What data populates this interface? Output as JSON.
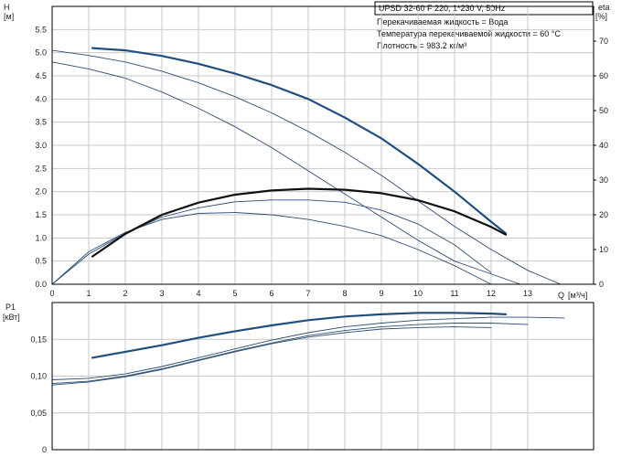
{
  "header": {
    "title": "UPSD 32-60 F 220, 1*230 V, 50Hz",
    "info": [
      "Перекачиваемая жидкость = Вода",
      "Температура перекачиваемой жидкости = 60 °C",
      "Плотность = 983.2 кг/м³"
    ]
  },
  "colors": {
    "strong": "#1f4f7f",
    "thin": "#2d4f76",
    "eta": "#111111",
    "grid": "#c8c8c8"
  },
  "chart_data": [
    {
      "type": "line",
      "name": "H-Q",
      "title": "",
      "ylabel": "H",
      "yunit": "[м]",
      "y2label": "eta",
      "y2unit": "[%]",
      "xlabel": "Q",
      "xunit": "[м³/ч]",
      "x_ticks": [
        "0",
        "1",
        "2",
        "3",
        "4",
        "5",
        "6",
        "7",
        "8",
        "9",
        "10",
        "11",
        "12",
        "13"
      ],
      "y_ticks": [
        "0.0",
        "0.5",
        "1.0",
        "1.5",
        "2.0",
        "2.5",
        "3.0",
        "3.5",
        "4.0",
        "4.5",
        "5.0",
        "5.5"
      ],
      "y2_ticks": [
        "0",
        "10",
        "20",
        "30",
        "40",
        "50",
        "60",
        "70"
      ],
      "xlim": [
        0,
        14.8
      ],
      "ylim": [
        0,
        6.0
      ],
      "y2lim": [
        0,
        80
      ],
      "grid": true,
      "series": [
        {
          "axis": "left",
          "weight": "bold",
          "x": [
            1.1,
            2,
            3,
            4,
            5,
            6,
            7,
            8,
            9,
            10,
            11,
            12,
            12.4
          ],
          "y": [
            5.1,
            5.05,
            4.93,
            4.76,
            4.55,
            4.3,
            4.0,
            3.6,
            3.15,
            2.6,
            2.0,
            1.35,
            1.1
          ]
        },
        {
          "axis": "left",
          "weight": "thin",
          "x": [
            0,
            1,
            2,
            3,
            4,
            5,
            6,
            7,
            8,
            9,
            10,
            11,
            12,
            13,
            13.9
          ],
          "y": [
            5.05,
            4.94,
            4.8,
            4.6,
            4.35,
            4.05,
            3.7,
            3.3,
            2.85,
            2.35,
            1.8,
            1.25,
            0.75,
            0.3,
            0.0
          ]
        },
        {
          "axis": "left",
          "weight": "thin",
          "x": [
            0,
            1,
            2,
            3,
            4,
            5,
            6,
            7,
            8,
            9,
            10,
            11,
            12.8
          ],
          "y": [
            4.8,
            4.65,
            4.45,
            4.15,
            3.8,
            3.4,
            2.95,
            2.45,
            1.95,
            1.45,
            0.95,
            0.5,
            0.0
          ]
        },
        {
          "axis": "left",
          "weight": "thin",
          "x": [
            0,
            1,
            2,
            3,
            4,
            5,
            6,
            7,
            8,
            9,
            10,
            11,
            12
          ],
          "y": [
            0.0,
            0.65,
            1.1,
            1.45,
            1.65,
            1.78,
            1.82,
            1.82,
            1.77,
            1.6,
            1.3,
            0.85,
            0.25
          ]
        },
        {
          "axis": "left",
          "weight": "thin",
          "x": [
            0,
            1,
            2,
            3,
            4,
            5,
            6,
            7,
            8,
            9,
            10,
            11,
            12
          ],
          "y": [
            0.0,
            0.7,
            1.12,
            1.4,
            1.53,
            1.55,
            1.5,
            1.4,
            1.25,
            1.05,
            0.75,
            0.4,
            0.0
          ]
        },
        {
          "axis": "right",
          "weight": "eta",
          "x": [
            1.1,
            2,
            3,
            4,
            5,
            6,
            7,
            8,
            9,
            10,
            11,
            12,
            12.4
          ],
          "y": [
            8,
            14.5,
            20,
            23.5,
            25.8,
            27,
            27.5,
            27.2,
            26.2,
            24.2,
            21,
            16.5,
            14.3
          ]
        }
      ]
    },
    {
      "type": "line",
      "name": "P1-Q",
      "title": "",
      "ylabel": "P1",
      "yunit": "[кВт]",
      "y_ticks": [
        "0",
        "0,05",
        "0,10",
        "0,15"
      ],
      "xlim": [
        0,
        14.8
      ],
      "ylim": [
        0,
        0.2
      ],
      "grid": true,
      "series": [
        {
          "weight": "bold",
          "x": [
            1.1,
            2,
            3,
            4,
            5,
            6,
            7,
            8,
            9,
            10,
            11,
            12,
            12.4
          ],
          "y": [
            0.125,
            0.133,
            0.142,
            0.152,
            0.161,
            0.169,
            0.176,
            0.181,
            0.184,
            0.186,
            0.186,
            0.185,
            0.184
          ]
        },
        {
          "weight": "thin",
          "x": [
            0,
            1,
            2,
            3,
            4,
            5,
            6,
            7,
            8,
            9,
            10,
            11,
            12,
            13,
            14
          ],
          "y": [
            0.095,
            0.097,
            0.103,
            0.113,
            0.125,
            0.137,
            0.149,
            0.159,
            0.167,
            0.172,
            0.176,
            0.178,
            0.18,
            0.18,
            0.179
          ]
        },
        {
          "weight": "thin",
          "x": [
            0,
            1,
            2,
            3,
            4,
            5,
            6,
            7,
            8,
            9,
            10,
            11,
            12,
            13
          ],
          "y": [
            0.09,
            0.093,
            0.1,
            0.11,
            0.122,
            0.134,
            0.145,
            0.155,
            0.162,
            0.167,
            0.17,
            0.172,
            0.172,
            0.17
          ]
        },
        {
          "weight": "thin",
          "x": [
            0,
            1,
            2,
            3,
            4,
            5,
            6,
            7,
            8,
            9,
            10,
            11,
            12
          ],
          "y": [
            0.088,
            0.092,
            0.099,
            0.109,
            0.121,
            0.133,
            0.144,
            0.153,
            0.159,
            0.164,
            0.166,
            0.167,
            0.166
          ]
        }
      ]
    }
  ]
}
